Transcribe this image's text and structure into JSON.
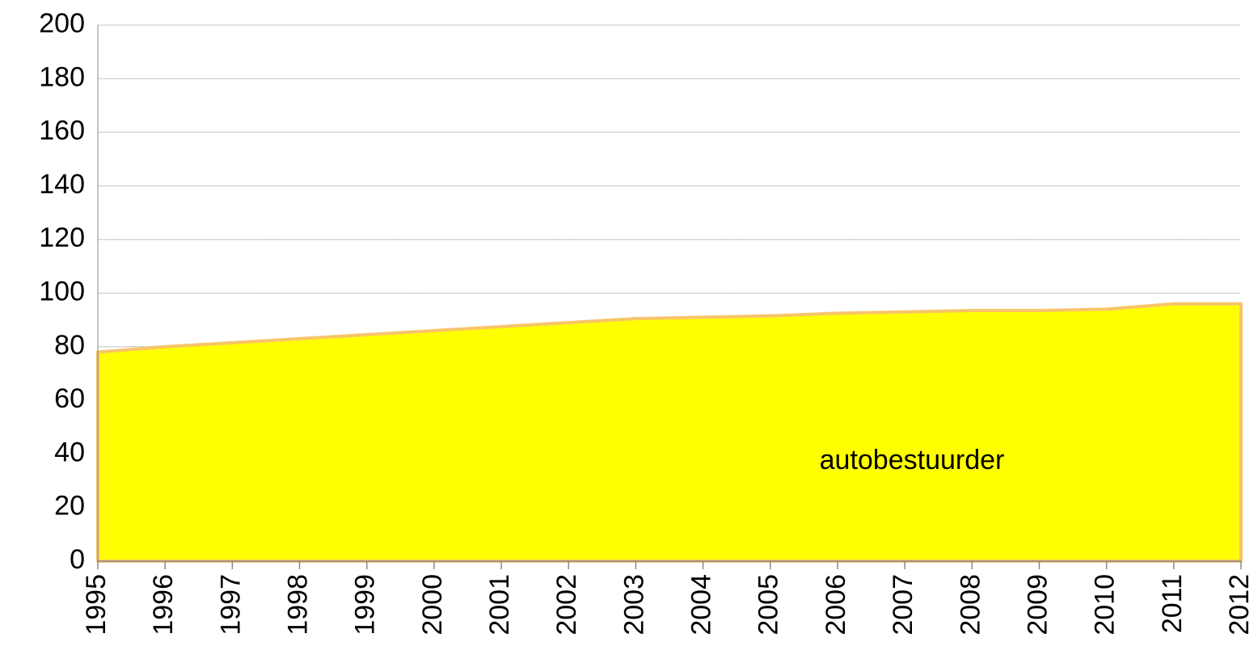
{
  "chart_data": {
    "type": "area",
    "categories": [
      "1995",
      "1996",
      "1997",
      "1998",
      "1999",
      "2000",
      "2001",
      "2002",
      "2003",
      "2004",
      "2005",
      "2006",
      "2007",
      "2008",
      "2009",
      "2010",
      "2011",
      "2012"
    ],
    "series": [
      {
        "name": "autobestuurder",
        "color": "#ffff00",
        "line_color": "#f7c56a",
        "values": [
          78,
          80,
          81.5,
          83,
          84.5,
          86,
          87.5,
          89,
          90.5,
          91,
          91.5,
          92.5,
          93,
          93.5,
          93.5,
          94,
          96,
          96
        ]
      }
    ],
    "ylim": [
      0,
      200
    ],
    "yticks": [
      0,
      20,
      40,
      60,
      80,
      100,
      120,
      140,
      160,
      180,
      200
    ],
    "grid": true
  }
}
